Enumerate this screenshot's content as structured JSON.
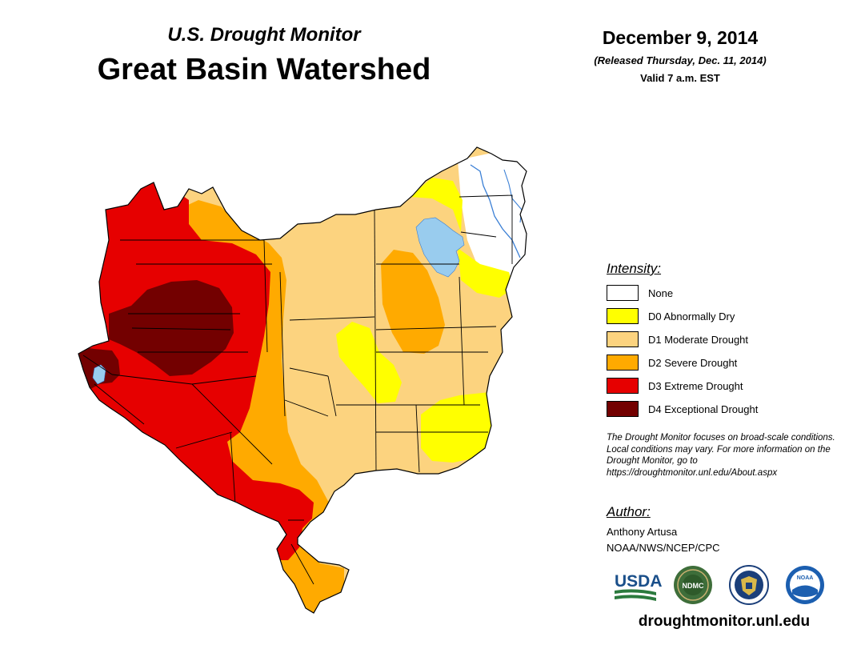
{
  "header": {
    "monitor_title": "U.S. Drought Monitor",
    "region_title": "Great Basin Watershed"
  },
  "date": {
    "title": "December 9, 2014",
    "released": "(Released Thursday, Dec. 11, 2014)",
    "valid": "Valid 7 a.m. EST"
  },
  "legend": {
    "title": "Intensity:",
    "items": [
      {
        "label": "None",
        "color": "#ffffff"
      },
      {
        "label": "D0 Abnormally Dry",
        "color": "#ffff00"
      },
      {
        "label": "D1 Moderate Drought",
        "color": "#fcd37f"
      },
      {
        "label": "D2 Severe Drought",
        "color": "#ffaa00"
      },
      {
        "label": "D3 Extreme Drought",
        "color": "#e60000"
      },
      {
        "label": "D4 Exceptional Drought",
        "color": "#730000"
      }
    ]
  },
  "note": "The Drought Monitor focuses on broad-scale conditions. Local conditions may vary. For more information on the Drought Monitor, go to https://droughtmonitor.unl.edu/About.aspx",
  "author": {
    "title": "Author:",
    "name": "Anthony Artusa",
    "org": "NOAA/NWS/NCEP/CPC"
  },
  "logos": {
    "usda": "USDA",
    "ndmc": "NDMC",
    "noaa": "NOAA"
  },
  "site_url": "droughtmonitor.unl.edu",
  "colors": {
    "water": "#99ccee",
    "river": "#3a7fd5",
    "boundary": "#000000"
  }
}
